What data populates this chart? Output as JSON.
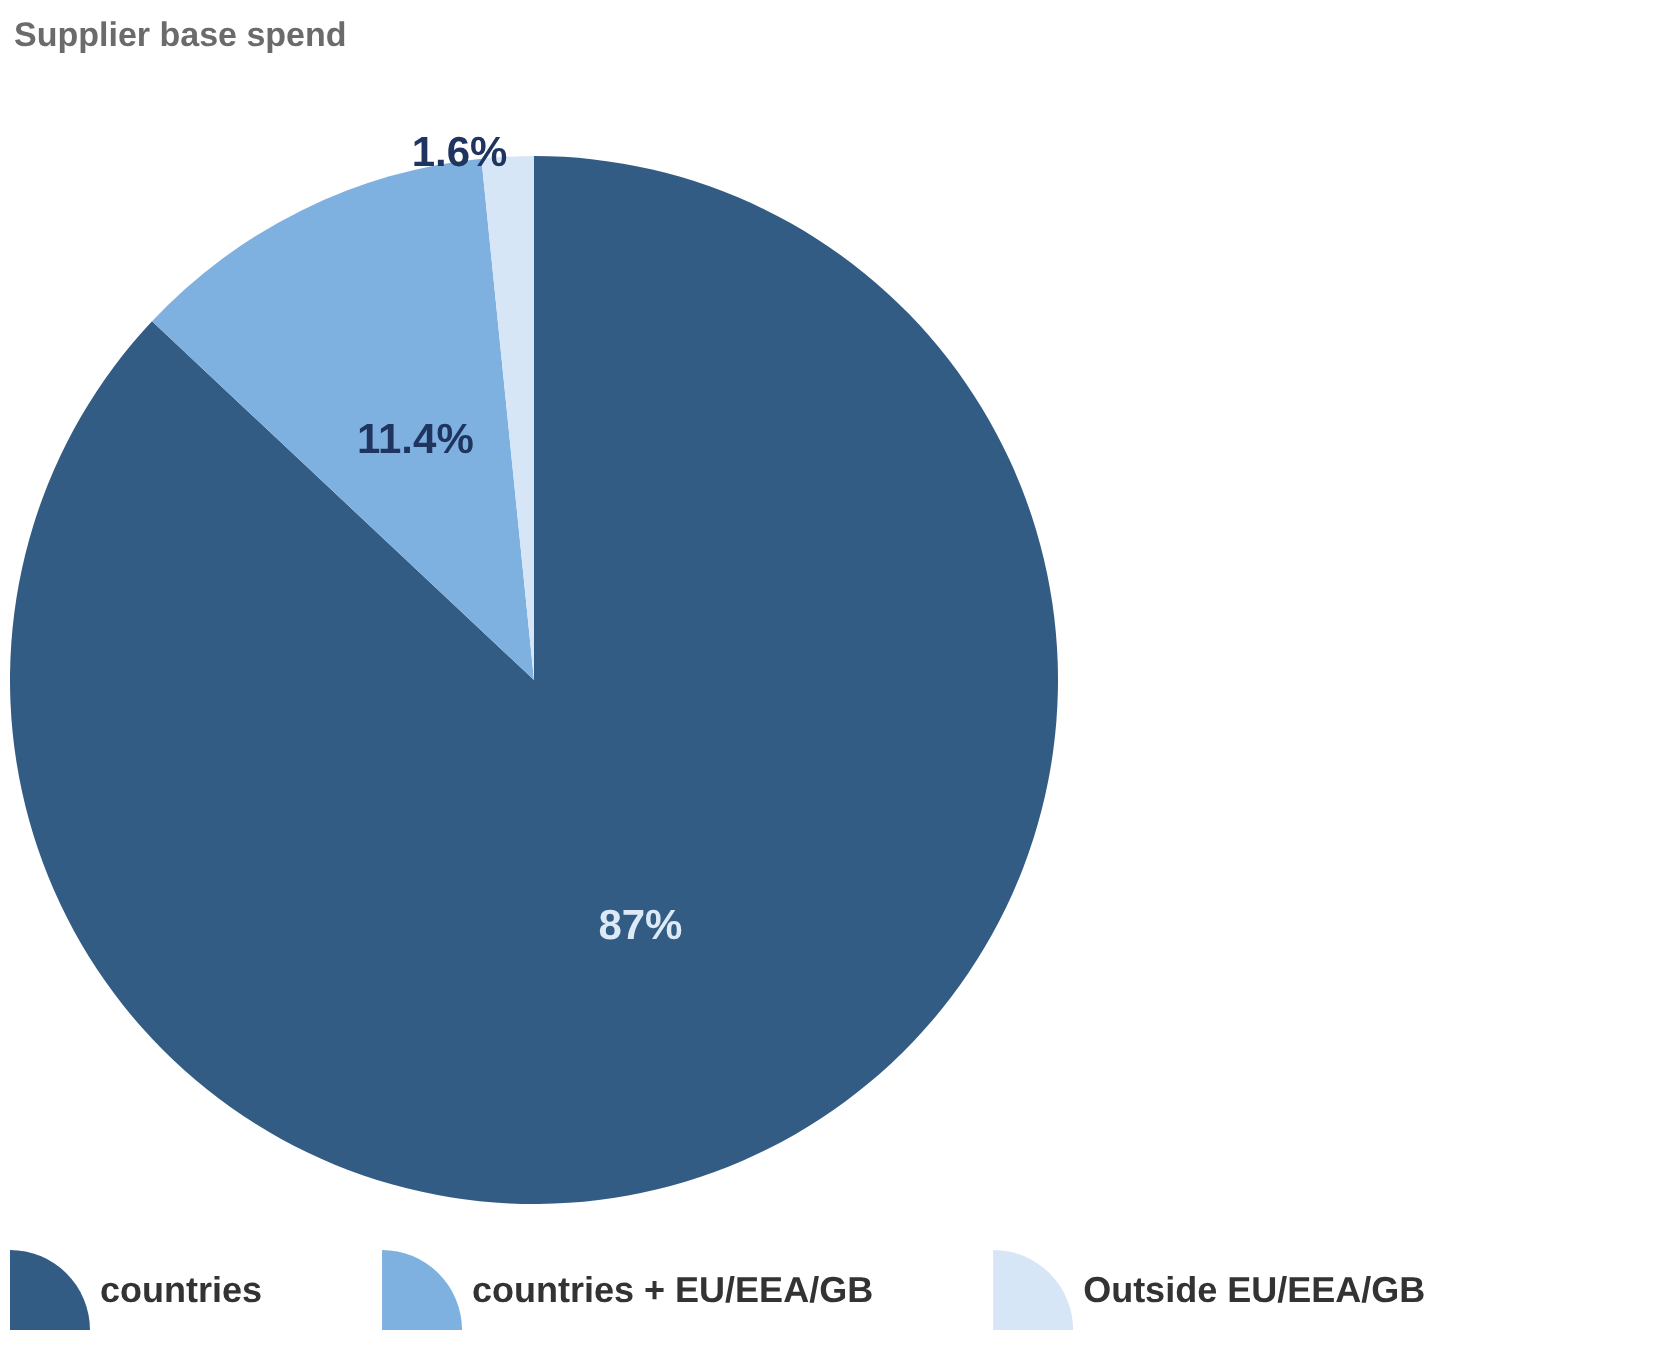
{
  "chart_data": {
    "type": "pie",
    "title": "Supplier base spend",
    "categories": [
      "countries",
      "countries + EU/EEA/GB",
      "Outside EU/EEA/GB"
    ],
    "values": [
      87,
      11.4,
      1.6
    ],
    "colors": [
      "#335c84",
      "#7fb1e0",
      "#d6e6f7"
    ],
    "value_labels": [
      "87%",
      "11.4%",
      "1.6%"
    ],
    "legend": "bottom"
  }
}
